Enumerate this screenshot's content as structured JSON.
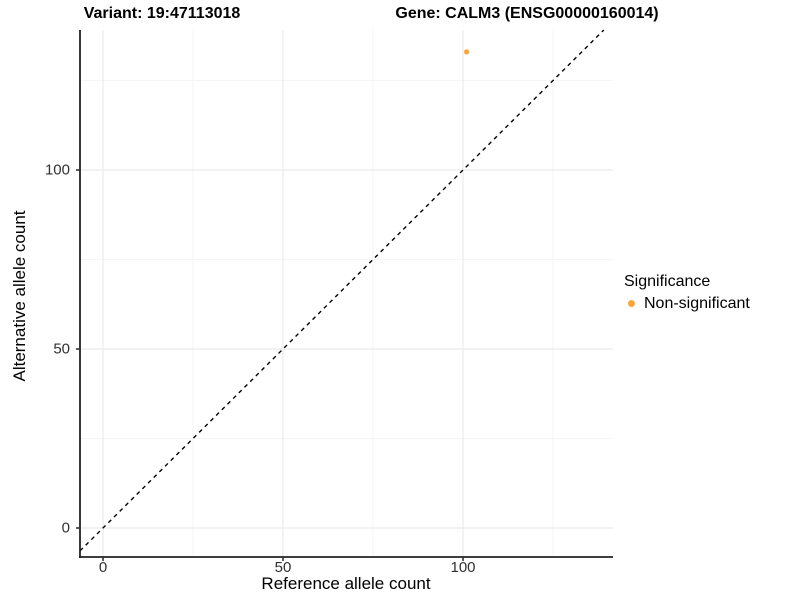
{
  "chart_data": {
    "type": "scatter",
    "titles": {
      "variant": "Variant: 19:47113018",
      "gene": "Gene: CALM3 (ENSG00000160014)"
    },
    "xlabel": "Reference allele count",
    "ylabel": "Alternative allele count",
    "x_tick_values": [
      0,
      50,
      100
    ],
    "y_tick_values": [
      0,
      50,
      100
    ],
    "x_minor_values": [
      25,
      75,
      125
    ],
    "y_minor_values": [
      25,
      75,
      125
    ],
    "xlim": [
      -6.4,
      141.7
    ],
    "ylim": [
      -8.1,
      139.1
    ],
    "grid": "major and minor, light gray, on white background",
    "identity_line": {
      "equation": "y = x",
      "style": "dashed",
      "color": "#000000"
    },
    "points": [
      {
        "x": 101,
        "y": 133,
        "series": "Non-significant",
        "color": "#F8A63C"
      }
    ],
    "legend": {
      "title": "Significance",
      "position": "right",
      "entries": [
        {
          "label": "Non-significant",
          "color": "#F8A63C"
        }
      ]
    },
    "colors": {
      "grid_major": "#EBEBEB",
      "grid_minor": "#F5F5F5",
      "axis_line": "#222222",
      "tick_mark": "#333333",
      "background": "#FFFFFF"
    }
  }
}
